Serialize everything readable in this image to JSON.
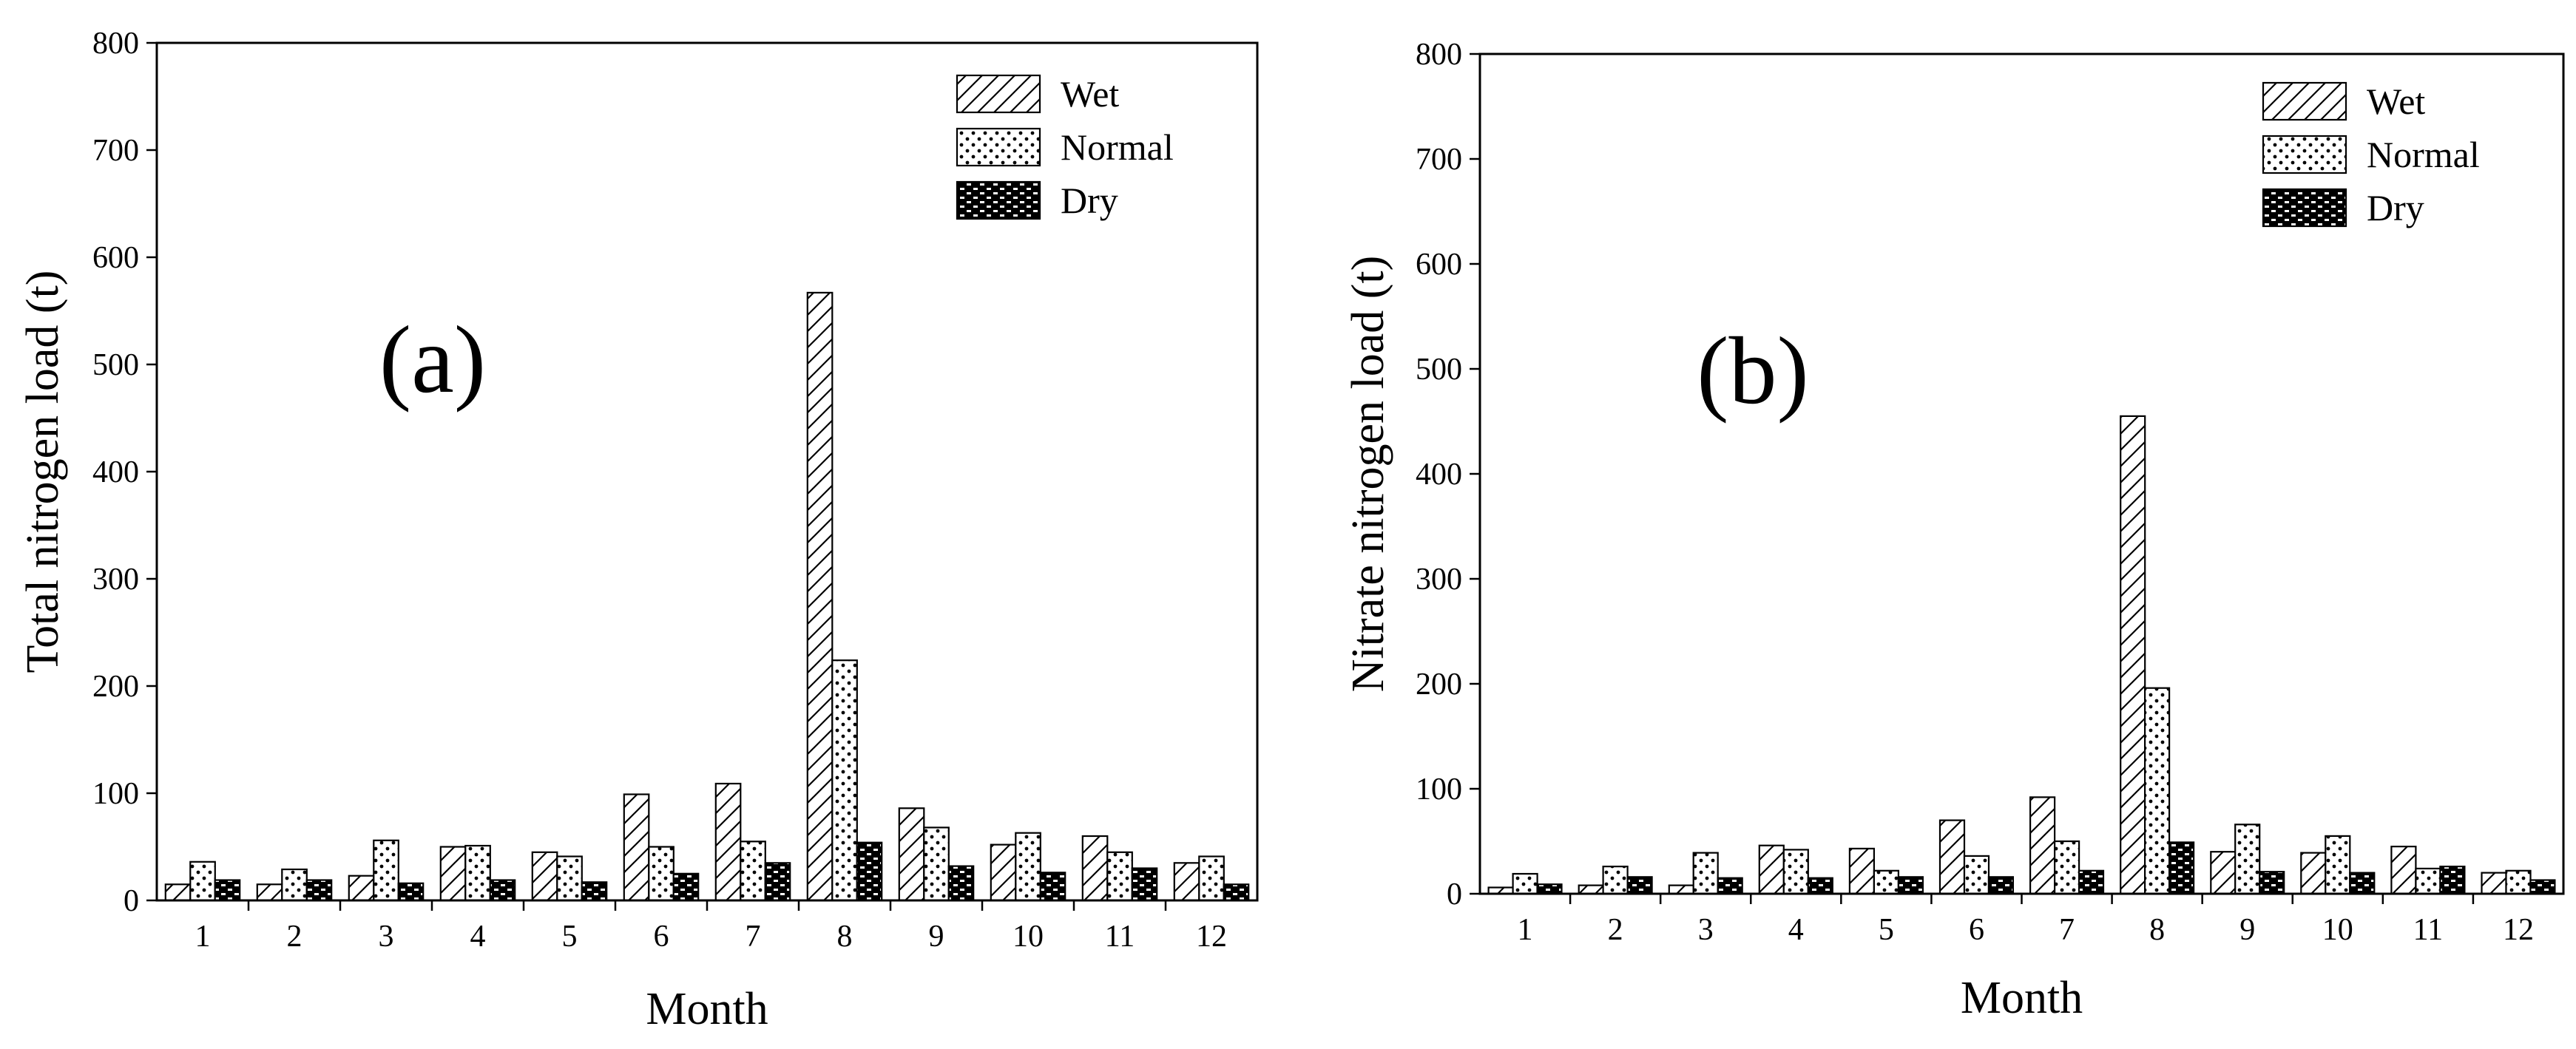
{
  "chart_data": [
    {
      "type": "bar",
      "panel_label": "(a)",
      "xlabel": "Month",
      "ylabel": "Total nitrogen load (t)",
      "ylim": [
        0,
        800
      ],
      "yticks": [
        0,
        100,
        200,
        300,
        400,
        500,
        600,
        700,
        800
      ],
      "categories": [
        "1",
        "2",
        "3",
        "4",
        "5",
        "6",
        "7",
        "8",
        "9",
        "10",
        "11",
        "12"
      ],
      "legend_position": "top-right",
      "series": [
        {
          "name": "Wet",
          "pattern": "hatch",
          "values": [
            15,
            15,
            23,
            50,
            45,
            99,
            109,
            567,
            86,
            52,
            60,
            35
          ]
        },
        {
          "name": "Normal",
          "pattern": "dots",
          "values": [
            36,
            29,
            56,
            51,
            41,
            50,
            55,
            224,
            68,
            63,
            45,
            41
          ]
        },
        {
          "name": "Dry",
          "pattern": "checker",
          "values": [
            19,
            19,
            16,
            19,
            17,
            25,
            35,
            54,
            32,
            26,
            30,
            15
          ]
        }
      ]
    },
    {
      "type": "bar",
      "panel_label": "(b)",
      "xlabel": "Month",
      "ylabel": "Nitrate nitrogen load (t)",
      "ylim": [
        0,
        800
      ],
      "yticks": [
        0,
        100,
        200,
        300,
        400,
        500,
        600,
        700,
        800
      ],
      "categories": [
        "1",
        "2",
        "3",
        "4",
        "5",
        "6",
        "7",
        "8",
        "9",
        "10",
        "11",
        "12"
      ],
      "legend_position": "top-right",
      "series": [
        {
          "name": "Wet",
          "pattern": "hatch",
          "values": [
            6,
            8,
            8,
            46,
            43,
            70,
            92,
            455,
            40,
            39,
            45,
            20
          ]
        },
        {
          "name": "Normal",
          "pattern": "dots",
          "values": [
            19,
            26,
            39,
            42,
            22,
            36,
            50,
            196,
            66,
            55,
            24,
            22
          ]
        },
        {
          "name": "Dry",
          "pattern": "checker",
          "values": [
            9,
            16,
            15,
            15,
            16,
            16,
            22,
            49,
            21,
            20,
            26,
            13
          ]
        }
      ]
    }
  ]
}
